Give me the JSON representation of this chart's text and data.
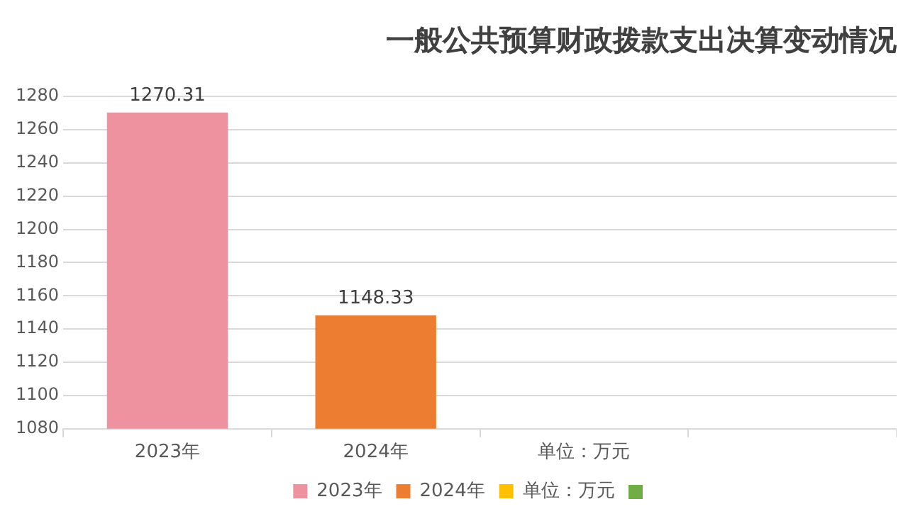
{
  "chart_data": {
    "type": "bar",
    "title": "一般公共预算财政拨款支出决算变动情况",
    "categories": [
      "2023年",
      "2024年",
      "单位：万元",
      null
    ],
    "series": [
      {
        "name": "2023年",
        "color": "#ef929f",
        "values": [
          1270.31,
          null,
          null,
          null
        ]
      },
      {
        "name": "2024年",
        "color": "#ed7d31",
        "values": [
          null,
          1148.33,
          null,
          null
        ]
      },
      {
        "name": "单位：万元",
        "color": "#ffc000",
        "values": [
          null,
          null,
          null,
          null
        ]
      },
      {
        "color": "#70ad47",
        "values": [
          null,
          null,
          null,
          null
        ]
      }
    ],
    "ylim": [
      1080,
      1280
    ],
    "yticks": [
      1080,
      1100,
      1120,
      1140,
      1160,
      1180,
      1200,
      1220,
      1240,
      1260,
      1280
    ],
    "grid": "y",
    "legend": "bottom",
    "data_labels": true
  }
}
